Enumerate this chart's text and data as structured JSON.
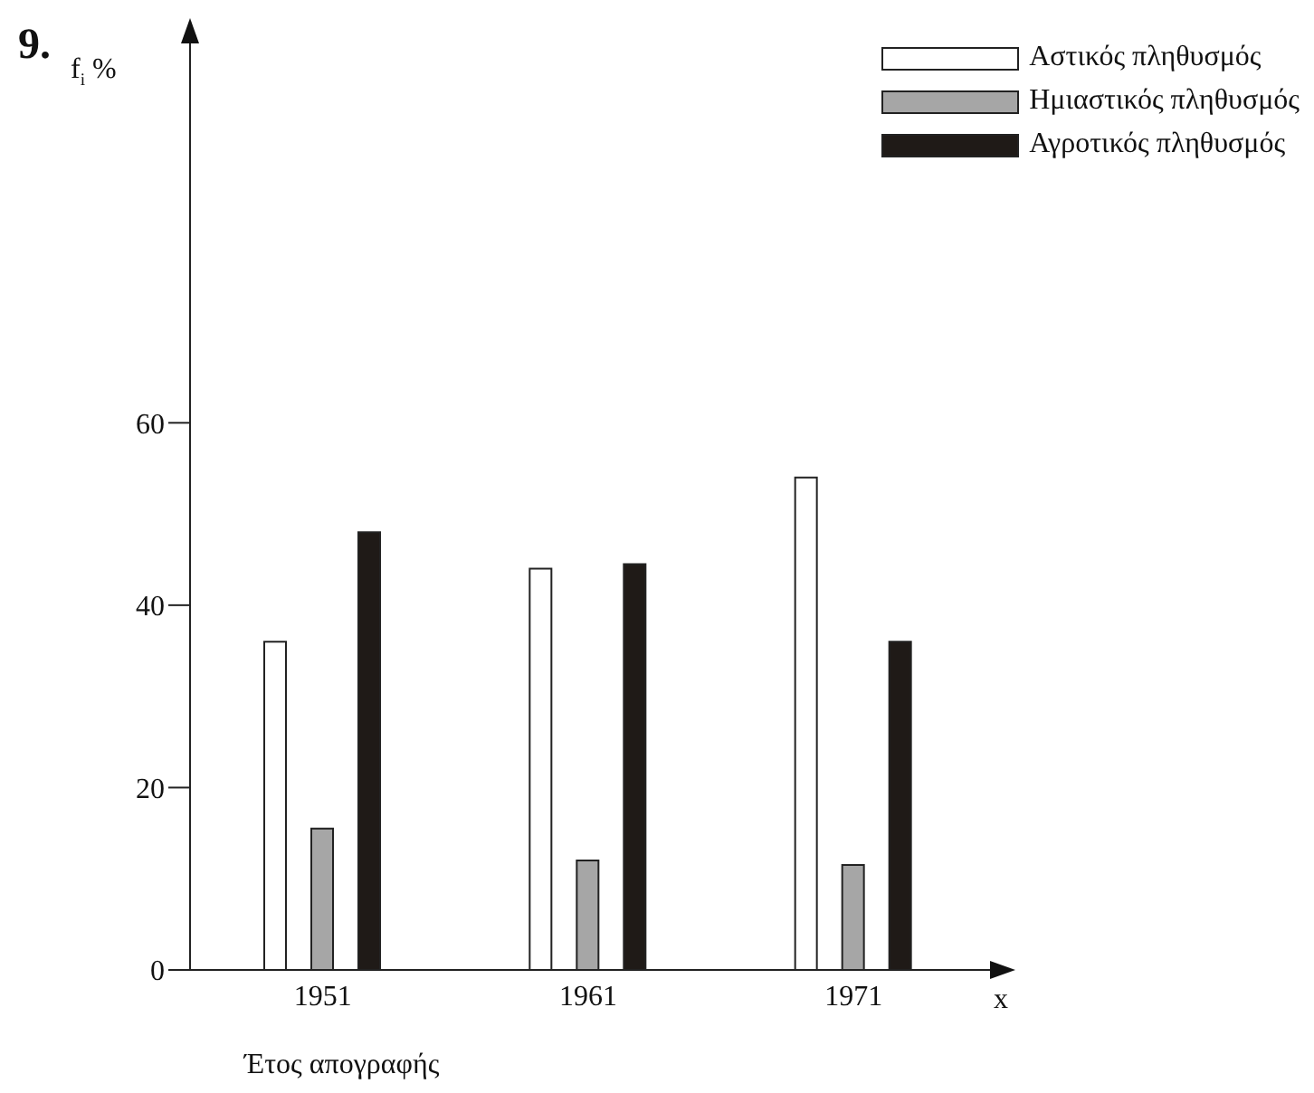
{
  "chart_data": {
    "type": "bar",
    "title": "9.",
    "xlabel": "Έτος απογραφής",
    "ylabel": "f$_{i}$ %",
    "annotations": [
      "x"
    ],
    "categories": [
      "1951",
      "1961",
      "1971"
    ],
    "series": [
      {
        "name": "Αστικός πληθυσμός",
        "color": "#ffffff",
        "values": [
          36,
          44,
          54
        ]
      },
      {
        "name": "Ημιαστικός πληθυσμός",
        "color": "#a6a6a6",
        "values": [
          15.5,
          12,
          11.5
        ]
      },
      {
        "name": "Αγροτικός πληθυσμός",
        "color": "#1f1a17",
        "values": [
          48,
          44.5,
          36
        ]
      }
    ],
    "ylim": [
      0,
      102
    ],
    "yticks": [
      0,
      20,
      40,
      60
    ],
    "grid": false,
    "legend": "top right"
  }
}
